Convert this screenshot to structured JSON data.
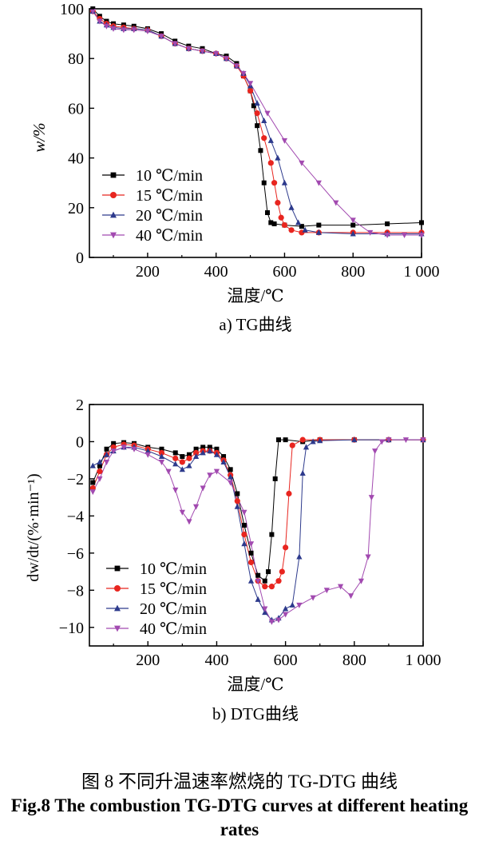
{
  "chart_data": [
    {
      "type": "scatter",
      "caption": "a) TG曲线",
      "ylabel": "w/%",
      "xlabel": "温度/℃",
      "xlim": [
        30,
        1000
      ],
      "ylim": [
        0,
        100
      ],
      "xticks": [
        200,
        400,
        600,
        800,
        1000
      ],
      "xtick_labels": [
        "200",
        "400",
        "600",
        "800",
        "1 000"
      ],
      "yticks": [
        0,
        20,
        40,
        60,
        80,
        100
      ],
      "ytick_labels": [
        "0",
        "20",
        "40",
        "60",
        "80",
        "100"
      ],
      "legend_position": "bottom-left",
      "series": [
        {
          "name": "10 ℃/min",
          "color": "#000000",
          "marker": "square",
          "x": [
            40,
            60,
            80,
            100,
            130,
            160,
            200,
            240,
            280,
            320,
            360,
            400,
            430,
            460,
            480,
            500,
            510,
            520,
            530,
            540,
            550,
            560,
            570,
            600,
            650,
            700,
            800,
            900,
            1000
          ],
          "y": [
            100,
            97,
            95,
            94,
            93.5,
            93,
            92,
            90,
            87,
            85,
            84,
            82,
            81,
            78,
            73,
            67,
            61,
            53,
            43,
            30,
            18,
            14,
            13.5,
            13,
            12.5,
            13,
            13,
            13.5,
            14
          ]
        },
        {
          "name": "15 ℃/min",
          "color": "#e8251f",
          "marker": "circle",
          "x": [
            40,
            60,
            80,
            100,
            130,
            160,
            200,
            240,
            280,
            320,
            360,
            400,
            430,
            460,
            480,
            500,
            520,
            540,
            560,
            570,
            580,
            590,
            600,
            620,
            650,
            700,
            800,
            900,
            1000
          ],
          "y": [
            99,
            96,
            94,
            93,
            92.5,
            92,
            91.5,
            89,
            86,
            84,
            83,
            82,
            80,
            77,
            73,
            67,
            58,
            48,
            38,
            30,
            22,
            16,
            13,
            11,
            10,
            10,
            10,
            10,
            10
          ]
        },
        {
          "name": "20 ℃/min",
          "color": "#2d3a8c",
          "marker": "triangle",
          "x": [
            40,
            60,
            80,
            100,
            130,
            160,
            200,
            240,
            280,
            320,
            360,
            400,
            430,
            460,
            480,
            500,
            520,
            540,
            560,
            580,
            600,
            620,
            640,
            660,
            700,
            800,
            900,
            1000
          ],
          "y": [
            99,
            95,
            93.5,
            92.5,
            92,
            92,
            91.5,
            89,
            86,
            84,
            83,
            82,
            80,
            77,
            74,
            69,
            62,
            55,
            47,
            40,
            30,
            20,
            14,
            11,
            10,
            9.5,
            9.5,
            9.5
          ]
        },
        {
          "name": "40 ℃/min",
          "color": "#a24ab0",
          "marker": "triangle-down",
          "x": [
            40,
            60,
            80,
            100,
            130,
            160,
            200,
            240,
            280,
            320,
            360,
            400,
            430,
            460,
            480,
            500,
            550,
            600,
            650,
            700,
            750,
            800,
            850,
            900,
            950,
            1000
          ],
          "y": [
            99,
            95,
            93,
            92,
            91.5,
            91.5,
            91,
            89,
            86,
            84,
            83,
            82,
            80,
            77,
            74,
            70,
            58,
            47,
            38,
            30,
            22,
            15,
            10,
            9,
            9,
            9
          ]
        }
      ]
    },
    {
      "type": "scatter",
      "caption": "b) DTG曲线",
      "ylabel": "dw/dt/(%·min⁻¹)",
      "xlabel": "温度/℃",
      "xlim": [
        30,
        1000
      ],
      "ylim": [
        -11,
        2
      ],
      "xticks": [
        200,
        400,
        600,
        800,
        1000
      ],
      "xtick_labels": [
        "200",
        "400",
        "600",
        "800",
        "1 000"
      ],
      "yticks": [
        2,
        0,
        -2,
        -4,
        -6,
        -8,
        -10
      ],
      "ytick_labels": [
        "2",
        "0",
        "−2",
        "−4",
        "−6",
        "−8",
        "−10"
      ],
      "legend_position": "bottom-left",
      "series": [
        {
          "name": "10 ℃/min",
          "color": "#000000",
          "marker": "square",
          "x": [
            40,
            60,
            80,
            100,
            130,
            160,
            200,
            240,
            280,
            300,
            320,
            340,
            360,
            380,
            400,
            420,
            440,
            460,
            480,
            500,
            520,
            540,
            550,
            560,
            570,
            580,
            600,
            650,
            700,
            800,
            900,
            1000
          ],
          "y": [
            -2.2,
            -1.3,
            -0.4,
            -0.1,
            -0.05,
            -0.1,
            -0.3,
            -0.4,
            -0.6,
            -0.8,
            -0.7,
            -0.4,
            -0.3,
            -0.3,
            -0.4,
            -0.8,
            -1.5,
            -2.8,
            -4.5,
            -6,
            -7.2,
            -7.5,
            -7,
            -5,
            -2,
            0.1,
            0.1,
            0,
            0.1,
            0.1,
            0.1,
            0.1
          ]
        },
        {
          "name": "15 ℃/min",
          "color": "#e8251f",
          "marker": "circle",
          "x": [
            40,
            60,
            80,
            100,
            130,
            160,
            200,
            240,
            280,
            300,
            320,
            340,
            360,
            380,
            400,
            420,
            440,
            460,
            480,
            500,
            520,
            540,
            560,
            580,
            590,
            600,
            610,
            620,
            650,
            700,
            800,
            900,
            1000
          ],
          "y": [
            -2.5,
            -1.6,
            -0.7,
            -0.3,
            -0.15,
            -0.2,
            -0.4,
            -0.6,
            -0.9,
            -1.1,
            -0.9,
            -0.6,
            -0.5,
            -0.5,
            -0.6,
            -1,
            -1.8,
            -3.2,
            -5,
            -6.5,
            -7.5,
            -7.8,
            -7.8,
            -7.5,
            -7,
            -5.7,
            -2.8,
            -0.2,
            0.1,
            0.1,
            0.1,
            0.1,
            0.1
          ]
        },
        {
          "name": "20 ℃/min",
          "color": "#2d3a8c",
          "marker": "triangle",
          "x": [
            40,
            60,
            80,
            100,
            130,
            160,
            200,
            240,
            280,
            300,
            320,
            340,
            360,
            380,
            400,
            420,
            440,
            460,
            480,
            500,
            520,
            540,
            560,
            580,
            600,
            620,
            640,
            650,
            660,
            680,
            700,
            800,
            900,
            1000
          ],
          "y": [
            -1.3,
            -1.1,
            -0.7,
            -0.5,
            -0.3,
            -0.3,
            -0.5,
            -0.8,
            -1.2,
            -1.5,
            -1.3,
            -0.8,
            -0.6,
            -0.5,
            -0.7,
            -1.1,
            -1.9,
            -3.5,
            -5.5,
            -7.5,
            -8.5,
            -9.2,
            -9.6,
            -9.5,
            -9,
            -8.8,
            -6.2,
            -1.7,
            -0.3,
            0,
            0.05,
            0.1,
            0.1,
            0.1
          ]
        },
        {
          "name": "40 ℃/min",
          "color": "#a24ab0",
          "marker": "triangle-down",
          "x": [
            40,
            60,
            80,
            100,
            130,
            160,
            200,
            240,
            260,
            280,
            300,
            320,
            340,
            360,
            380,
            400,
            440,
            480,
            500,
            520,
            540,
            560,
            580,
            600,
            640,
            680,
            720,
            760,
            790,
            820,
            840,
            850,
            860,
            880,
            900,
            950,
            1000
          ],
          "y": [
            -2.7,
            -2,
            -1.1,
            -0.5,
            -0.3,
            -0.4,
            -0.7,
            -1.1,
            -1.6,
            -2.6,
            -3.8,
            -4.3,
            -3.5,
            -2.5,
            -1.8,
            -1.6,
            -2.2,
            -3.8,
            -5.5,
            -7.5,
            -9,
            -9.7,
            -9.6,
            -9.3,
            -8.8,
            -8.4,
            -8,
            -7.8,
            -8.3,
            -7.5,
            -6.2,
            -3,
            -0.5,
            0,
            0.1,
            0.1,
            0.1
          ]
        }
      ]
    }
  ],
  "figure_caption_zh": "图 8  不同升温速率燃烧的 TG-DTG 曲线",
  "figure_caption_en": "Fig.8 The combustion TG-DTG curves at different heating rates"
}
